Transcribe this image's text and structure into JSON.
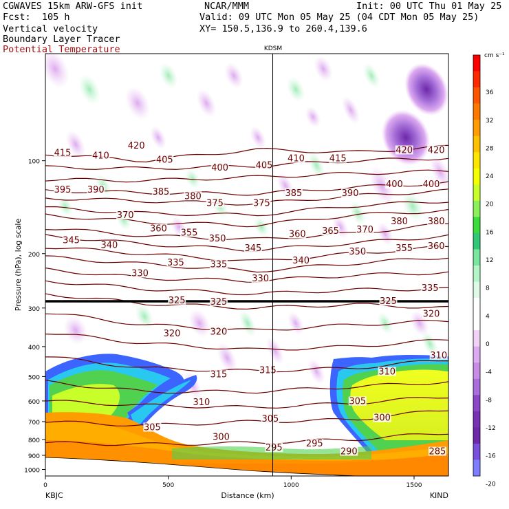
{
  "header": {
    "model": "CGWAVES 15km ARW-GFS init",
    "forecast": "Fcst:  105 h",
    "field1": "Vertical velocity",
    "field2": "Boundary Layer Tracer",
    "field3": "Potential Temperature",
    "center": "NCAR/MMM",
    "init": "Init: 00 UTC Thu 01 May 25",
    "valid": "Valid: 09 UTC Mon 05 May 25 (04 CDT Mon 05 May 25)",
    "xy": "XY= 150.5,136.9 to 260.4,139.6",
    "station_marker": "KDSM"
  },
  "colors": {
    "isentrope": "#6b0000",
    "tropopause": "#000000"
  },
  "chart_data": {
    "type": "heatmap",
    "ylabel": "Pressure (hPa), log scale",
    "xlabel": "Distance (km)",
    "x_ticks": [
      "0",
      "500",
      "1000",
      "1500"
    ],
    "x_tick_values": [
      0,
      500,
      1000,
      1500
    ],
    "xlim": [
      0,
      1640
    ],
    "y_ticks": [
      "100",
      "200",
      "300",
      "400",
      "500",
      "600",
      "700",
      "800",
      "900",
      "1000"
    ],
    "y_tick_values": [
      100,
      200,
      300,
      400,
      500,
      600,
      700,
      800,
      900,
      1000
    ],
    "ylim": [
      1050,
      45
    ],
    "y_scale": "log",
    "left_station": "KBJC",
    "right_station": "KIND",
    "marker_station": "KDSM",
    "marker_x_km": 925,
    "colorbar": {
      "units": "cm s⁻¹",
      "ticks": [
        "36",
        "32",
        "28",
        "24",
        "20",
        "16",
        "12",
        "8",
        "4",
        "0",
        "-4",
        "-8",
        "-12",
        "-16",
        "-20"
      ],
      "colors": [
        "#ff0000",
        "#ff2a00",
        "#ff5500",
        "#ff7800",
        "#ff9c00",
        "#ffc000",
        "#ffe600",
        "#f5ff00",
        "#c8ff2a",
        "#8cf05a",
        "#3cdc3c",
        "#32c87a",
        "#7ae6a0",
        "#b4f5c8",
        "#e0fae8",
        "#ffffff",
        "#ffffff",
        "#f0d2f5",
        "#dcaaf0",
        "#c88ce6",
        "#aa6edc",
        "#8c46c8",
        "#7832b4",
        "#6e28aa",
        "#7850dc",
        "#7d7dff"
      ]
    },
    "isentrope_labels": [
      {
        "text": "415",
        "x": 70,
        "p": 95
      },
      {
        "text": "410",
        "x": 225,
        "p": 97
      },
      {
        "text": "420",
        "x": 370,
        "p": 90
      },
      {
        "text": "405",
        "x": 485,
        "p": 100
      },
      {
        "text": "400",
        "x": 710,
        "p": 106
      },
      {
        "text": "405",
        "x": 890,
        "p": 104
      },
      {
        "text": "410",
        "x": 1020,
        "p": 99
      },
      {
        "text": "415",
        "x": 1190,
        "p": 99
      },
      {
        "text": "420",
        "x": 1460,
        "p": 93
      },
      {
        "text": "420",
        "x": 1590,
        "p": 93
      },
      {
        "text": "395",
        "x": 70,
        "p": 125
      },
      {
        "text": "390",
        "x": 205,
        "p": 125
      },
      {
        "text": "385",
        "x": 470,
        "p": 127
      },
      {
        "text": "380",
        "x": 600,
        "p": 131
      },
      {
        "text": "375",
        "x": 690,
        "p": 138
      },
      {
        "text": "375",
        "x": 880,
        "p": 138
      },
      {
        "text": "385",
        "x": 1010,
        "p": 128
      },
      {
        "text": "390",
        "x": 1240,
        "p": 128
      },
      {
        "text": "400",
        "x": 1420,
        "p": 120
      },
      {
        "text": "400",
        "x": 1570,
        "p": 120
      },
      {
        "text": "370",
        "x": 325,
        "p": 151
      },
      {
        "text": "360",
        "x": 460,
        "p": 167
      },
      {
        "text": "355",
        "x": 585,
        "p": 172
      },
      {
        "text": "350",
        "x": 700,
        "p": 180
      },
      {
        "text": "345",
        "x": 845,
        "p": 193
      },
      {
        "text": "360",
        "x": 1025,
        "p": 174
      },
      {
        "text": "365",
        "x": 1160,
        "p": 170
      },
      {
        "text": "370",
        "x": 1300,
        "p": 168
      },
      {
        "text": "380",
        "x": 1440,
        "p": 158
      },
      {
        "text": "380",
        "x": 1590,
        "p": 158
      },
      {
        "text": "345",
        "x": 105,
        "p": 182
      },
      {
        "text": "340",
        "x": 260,
        "p": 189
      },
      {
        "text": "335",
        "x": 530,
        "p": 215
      },
      {
        "text": "335",
        "x": 705,
        "p": 218
      },
      {
        "text": "340",
        "x": 1040,
        "p": 212
      },
      {
        "text": "350",
        "x": 1270,
        "p": 198
      },
      {
        "text": "355",
        "x": 1460,
        "p": 193
      },
      {
        "text": "360",
        "x": 1590,
        "p": 190
      },
      {
        "text": "330",
        "x": 385,
        "p": 233
      },
      {
        "text": "330",
        "x": 875,
        "p": 242
      },
      {
        "text": "335",
        "x": 1565,
        "p": 260
      },
      {
        "text": "325",
        "x": 535,
        "p": 285
      },
      {
        "text": "325",
        "x": 705,
        "p": 288
      },
      {
        "text": "325",
        "x": 1395,
        "p": 287
      },
      {
        "text": "320",
        "x": 1570,
        "p": 315
      },
      {
        "text": "320",
        "x": 515,
        "p": 365
      },
      {
        "text": "320",
        "x": 705,
        "p": 360
      },
      {
        "text": "315",
        "x": 705,
        "p": 495
      },
      {
        "text": "315",
        "x": 905,
        "p": 480
      },
      {
        "text": "310",
        "x": 1390,
        "p": 485
      },
      {
        "text": "310",
        "x": 1600,
        "p": 430
      },
      {
        "text": "310",
        "x": 635,
        "p": 610
      },
      {
        "text": "305",
        "x": 1270,
        "p": 605
      },
      {
        "text": "300",
        "x": 1370,
        "p": 685
      },
      {
        "text": "305",
        "x": 435,
        "p": 735
      },
      {
        "text": "300",
        "x": 715,
        "p": 790
      },
      {
        "text": "305",
        "x": 915,
        "p": 690
      },
      {
        "text": "295",
        "x": 930,
        "p": 855
      },
      {
        "text": "295",
        "x": 1095,
        "p": 830
      },
      {
        "text": "290",
        "x": 1235,
        "p": 880
      },
      {
        "text": "285",
        "x": 1595,
        "p": 880
      }
    ]
  }
}
